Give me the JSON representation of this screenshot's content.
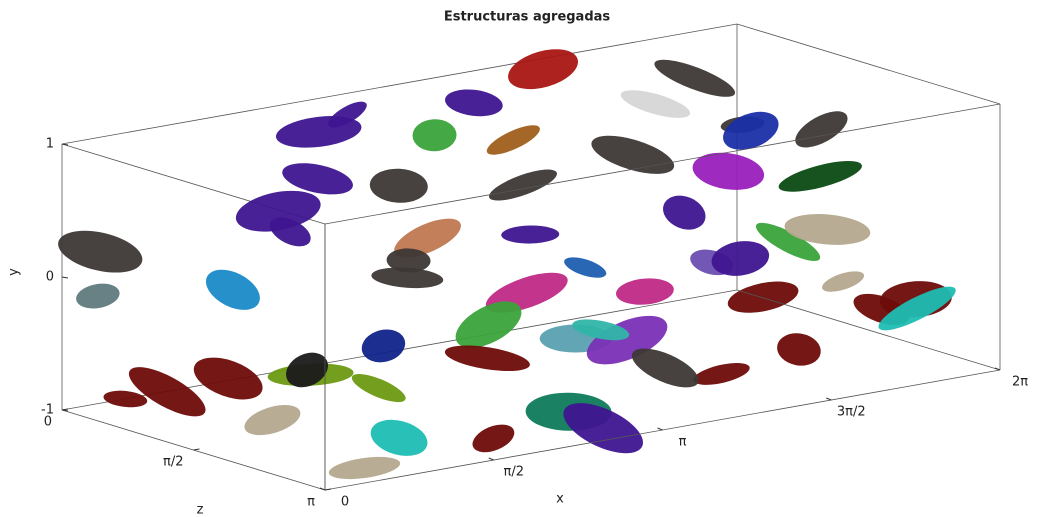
{
  "chart_data": {
    "type": "scatter3d",
    "title": "Estructuras agregadas",
    "xlabel": "x",
    "ylabel": "y",
    "zlabel": "z",
    "xlim": [
      0,
      6.2832
    ],
    "ylim": [
      -1,
      1
    ],
    "zlim": [
      0,
      3.1416
    ],
    "xticks": [
      0,
      {
        "value": 1.5708,
        "label": "π/2"
      },
      {
        "value": 3.1416,
        "label": "π"
      },
      {
        "value": 4.7124,
        "label": "3π/2"
      },
      {
        "value": 6.2832,
        "label": "2π"
      }
    ],
    "yticks": [
      -1,
      0,
      1
    ],
    "zticks": [
      0,
      {
        "value": 1.5708,
        "label": "π/2"
      },
      {
        "value": 3.1416,
        "label": "π"
      }
    ],
    "structures": [
      {
        "x": 2.5,
        "y": 0.9,
        "z": 0.2,
        "color": "#3f1591"
      },
      {
        "x": 3.6,
        "y": 0.85,
        "z": 0.3,
        "color": "#3f1591"
      },
      {
        "x": 4.4,
        "y": 0.95,
        "z": 0.1,
        "color": "#a91612"
      },
      {
        "x": 5.5,
        "y": 0.8,
        "z": 0.5,
        "color": "#3d3735"
      },
      {
        "x": 3.0,
        "y": 0.75,
        "z": 0.6,
        "color": "#3aa33a"
      },
      {
        "x": 3.5,
        "y": 0.7,
        "z": 0.9,
        "color": "#a05f1b"
      },
      {
        "x": 1.6,
        "y": 0.7,
        "z": 1.0,
        "color": "#3f1591"
      },
      {
        "x": 1.0,
        "y": 0.6,
        "z": 1.3,
        "color": "#3f1591"
      },
      {
        "x": 0.8,
        "y": 0.55,
        "z": 1.7,
        "color": "#3f1591"
      },
      {
        "x": 2.2,
        "y": 0.6,
        "z": 1.2,
        "color": "#3d3735"
      },
      {
        "x": 3.2,
        "y": 0.5,
        "z": 1.4,
        "color": "#3d3735"
      },
      {
        "x": 4.3,
        "y": 0.55,
        "z": 1.3,
        "color": "#3d3735"
      },
      {
        "x": 5.4,
        "y": 0.6,
        "z": 1.2,
        "color": "#3d3735"
      },
      {
        "x": 5.9,
        "y": 0.55,
        "z": 1.5,
        "color": "#3d3735"
      },
      {
        "x": 4.8,
        "y": 0.45,
        "z": 1.8,
        "color": "#9a1fbd"
      },
      {
        "x": 5.5,
        "y": 0.35,
        "z": 2.0,
        "color": "#0a4a12"
      },
      {
        "x": 4.0,
        "y": 0.35,
        "z": 2.3,
        "color": "#3f1591"
      },
      {
        "x": 2.8,
        "y": 0.3,
        "z": 2.0,
        "color": "#3f1591"
      },
      {
        "x": 2.0,
        "y": 0.35,
        "z": 1.8,
        "color": "#c07850"
      },
      {
        "x": 0.2,
        "y": 0.2,
        "z": 0.2,
        "color": "#3d3735"
      },
      {
        "x": 0.1,
        "y": -0.1,
        "z": 0.3,
        "color": "#5f7a7e"
      },
      {
        "x": 0.5,
        "y": 0.1,
        "z": 1.4,
        "color": "#1a8ac8"
      },
      {
        "x": 1.5,
        "y": 0.2,
        "z": 2.2,
        "color": "#3d3735"
      },
      {
        "x": 2.3,
        "y": 0.05,
        "z": 2.6,
        "color": "#c02a86"
      },
      {
        "x": 3.0,
        "y": 0.1,
        "z": 2.4,
        "color": "#1e5fb0"
      },
      {
        "x": 3.4,
        "y": -0.1,
        "z": 2.6,
        "color": "#c02a86"
      },
      {
        "x": 2.1,
        "y": -0.2,
        "z": 2.4,
        "color": "#3aa33a"
      },
      {
        "x": 1.7,
        "y": -0.3,
        "z": 2.9,
        "color": "#6e0c08"
      },
      {
        "x": 1.2,
        "y": -0.25,
        "z": 2.3,
        "color": "#10238a"
      },
      {
        "x": 1.0,
        "y": -0.5,
        "z": 2.5,
        "color": "#6d9a12"
      },
      {
        "x": 2.6,
        "y": -0.3,
        "z": 2.8,
        "color": "#5aa0b0"
      },
      {
        "x": 3.0,
        "y": -0.35,
        "z": 2.9,
        "color": "#7a2fb5"
      },
      {
        "x": 4.1,
        "y": 0.0,
        "z": 2.5,
        "color": "#6a4fb0"
      },
      {
        "x": 4.6,
        "y": -0.1,
        "z": 2.2,
        "color": "#3f1591"
      },
      {
        "x": 5.2,
        "y": -0.1,
        "z": 2.0,
        "color": "#3aa33a"
      },
      {
        "x": 5.8,
        "y": -0.15,
        "z": 1.7,
        "color": "#b5a88e"
      },
      {
        "x": 5.4,
        "y": -0.35,
        "z": 2.4,
        "color": "#b5a88e"
      },
      {
        "x": 5.6,
        "y": -0.55,
        "z": 2.6,
        "color": "#6e0c08"
      },
      {
        "x": 6.0,
        "y": -0.55,
        "z": 2.5,
        "color": "#6e0c08"
      },
      {
        "x": 5.7,
        "y": -0.5,
        "z": 2.9,
        "color": "#1dbdb3"
      },
      {
        "x": 4.6,
        "y": -0.65,
        "z": 2.9,
        "color": "#6e0c08"
      },
      {
        "x": 3.8,
        "y": -0.7,
        "z": 3.0,
        "color": "#6e0c08"
      },
      {
        "x": 3.2,
        "y": -0.55,
        "z": 3.1,
        "color": "#3d3735"
      },
      {
        "x": 2.3,
        "y": -0.75,
        "z": 3.1,
        "color": "#0e7a5a"
      },
      {
        "x": 1.6,
        "y": -0.85,
        "z": 3.1,
        "color": "#6e0c08"
      },
      {
        "x": 0.8,
        "y": -0.75,
        "z": 3.0,
        "color": "#1dbdb3"
      },
      {
        "x": 0.4,
        "y": -0.9,
        "z": 3.1,
        "color": "#b5a88e"
      },
      {
        "x": 0.2,
        "y": -0.7,
        "z": 1.0,
        "color": "#6e0c08"
      },
      {
        "x": 0.2,
        "y": -0.85,
        "z": 0.5,
        "color": "#6e0c08"
      },
      {
        "x": 0.4,
        "y": -0.75,
        "z": 2.0,
        "color": "#b5a88e"
      },
      {
        "x": 0.3,
        "y": -0.5,
        "z": 1.6,
        "color": "#6e0c08"
      },
      {
        "x": 0.6,
        "y": -0.4,
        "z": 2.2,
        "color": "#6d9a12"
      },
      {
        "x": 0.8,
        "y": -0.45,
        "z": 1.9,
        "color": "#1a1a1a"
      },
      {
        "x": 3.3,
        "y": -0.45,
        "z": 2.2,
        "color": "#2fb5a8"
      },
      {
        "x": 4.5,
        "y": -0.3,
        "z": 2.6,
        "color": "#6e0c08"
      },
      {
        "x": 2.7,
        "y": -0.95,
        "z": 3.0,
        "color": "#3f1591"
      },
      {
        "x": 1.2,
        "y": 0.45,
        "z": 2.6,
        "color": "#3d3735"
      },
      {
        "x": 6.1,
        "y": 0.3,
        "z": 0.4,
        "color": "#1a2fa8"
      },
      {
        "x": 4.9,
        "y": 0.75,
        "z": 0.8,
        "color": "#d6d6d6"
      },
      {
        "x": 2.0,
        "y": 0.9,
        "z": 0.5,
        "color": "#3f1591"
      }
    ]
  }
}
